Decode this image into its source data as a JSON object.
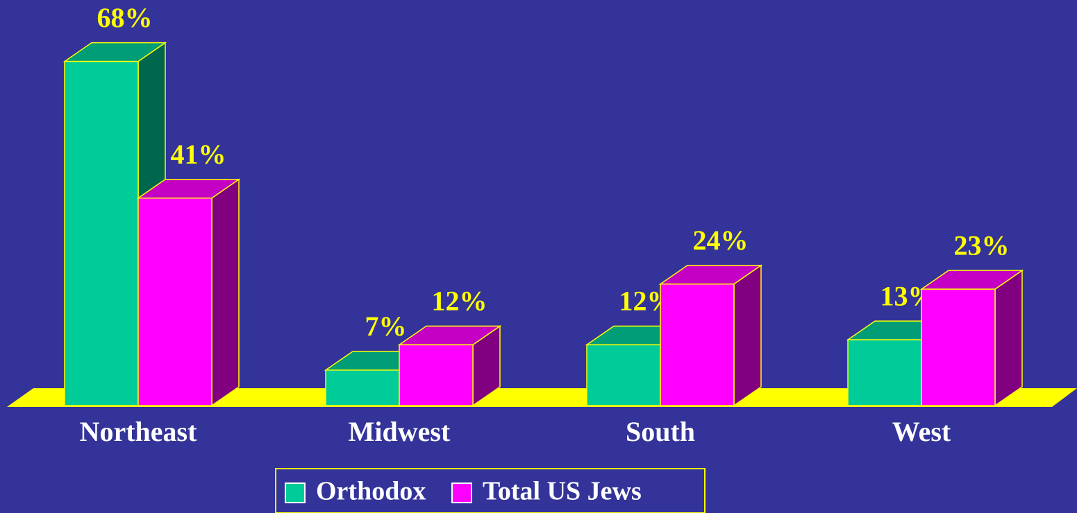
{
  "chart_data": {
    "type": "bar3d",
    "categories": [
      "Northeast",
      "Midwest",
      "South",
      "West"
    ],
    "series": [
      {
        "name": "Orthodox",
        "color": "#00cc99",
        "values": [
          68,
          7,
          12,
          13
        ],
        "value_labels": [
          "68%",
          "7%",
          "12%",
          "13%"
        ]
      },
      {
        "name": "Total US Jews",
        "color": "#ff00ff",
        "values": [
          41,
          12,
          24,
          23
        ],
        "value_labels": [
          "41%",
          "12%",
          "24%",
          "23%"
        ]
      }
    ]
  }
}
